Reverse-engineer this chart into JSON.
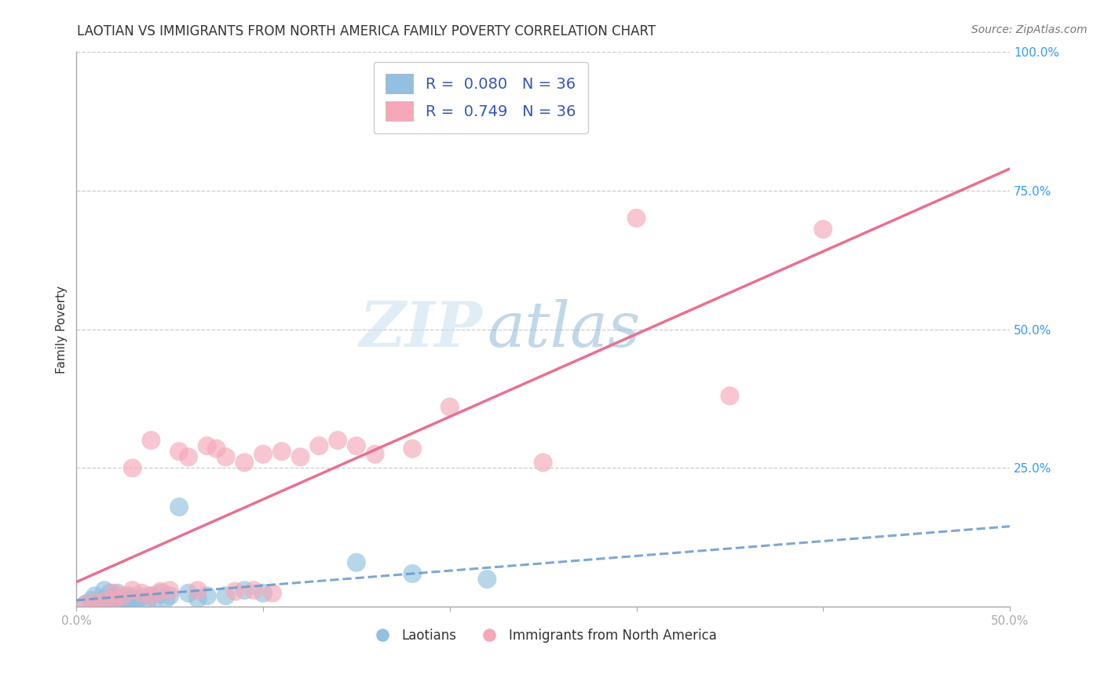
{
  "title": "LAOTIAN VS IMMIGRANTS FROM NORTH AMERICA FAMILY POVERTY CORRELATION CHART",
  "source": "Source: ZipAtlas.com",
  "xlabel": "",
  "ylabel": "Family Poverty",
  "xlim": [
    0.0,
    0.5
  ],
  "ylim": [
    0.0,
    1.0
  ],
  "xticks": [
    0.0,
    0.1,
    0.2,
    0.3,
    0.4,
    0.5
  ],
  "xticklabels": [
    "0.0%",
    "",
    "",
    "",
    "",
    "50.0%"
  ],
  "yticks": [
    0.0,
    0.25,
    0.5,
    0.75,
    1.0
  ],
  "yticklabels": [
    "",
    "25.0%",
    "50.0%",
    "75.0%",
    "100.0%"
  ],
  "R_blue": 0.08,
  "N_blue": 36,
  "R_pink": 0.749,
  "N_pink": 36,
  "blue_color": "#91c0e0",
  "pink_color": "#f4a8b8",
  "blue_line_color": "#6699cc",
  "pink_line_color": "#e87090",
  "label_blue": "Laotians",
  "label_pink": "Immigrants from North America",
  "watermark_zip": "ZIP",
  "watermark_atlas": "atlas",
  "blue_x": [
    0.005,
    0.008,
    0.01,
    0.012,
    0.015,
    0.015,
    0.018,
    0.018,
    0.02,
    0.02,
    0.022,
    0.022,
    0.025,
    0.025,
    0.028,
    0.028,
    0.03,
    0.03,
    0.032,
    0.035,
    0.038,
    0.04,
    0.042,
    0.045,
    0.048,
    0.05,
    0.055,
    0.06,
    0.065,
    0.07,
    0.08,
    0.09,
    0.1,
    0.15,
    0.18,
    0.22
  ],
  "blue_y": [
    0.005,
    0.012,
    0.02,
    0.008,
    0.015,
    0.03,
    0.01,
    0.025,
    0.008,
    0.018,
    0.012,
    0.025,
    0.005,
    0.015,
    0.01,
    0.02,
    0.008,
    0.015,
    0.012,
    0.018,
    0.01,
    0.02,
    0.015,
    0.025,
    0.015,
    0.02,
    0.18,
    0.025,
    0.015,
    0.02,
    0.02,
    0.03,
    0.025,
    0.08,
    0.06,
    0.05
  ],
  "pink_x": [
    0.005,
    0.01,
    0.015,
    0.02,
    0.02,
    0.025,
    0.03,
    0.03,
    0.035,
    0.04,
    0.04,
    0.045,
    0.05,
    0.055,
    0.06,
    0.065,
    0.07,
    0.075,
    0.08,
    0.085,
    0.09,
    0.095,
    0.1,
    0.105,
    0.11,
    0.12,
    0.13,
    0.14,
    0.15,
    0.16,
    0.18,
    0.2,
    0.25,
    0.3,
    0.35,
    0.4
  ],
  "pink_y": [
    0.005,
    0.008,
    0.01,
    0.012,
    0.025,
    0.02,
    0.03,
    0.25,
    0.025,
    0.02,
    0.3,
    0.028,
    0.03,
    0.28,
    0.27,
    0.03,
    0.29,
    0.285,
    0.27,
    0.028,
    0.26,
    0.03,
    0.275,
    0.025,
    0.28,
    0.27,
    0.29,
    0.3,
    0.29,
    0.275,
    0.285,
    0.36,
    0.26,
    0.7,
    0.38,
    0.68
  ],
  "background_color": "#ffffff",
  "grid_color": "#cccccc",
  "title_fontsize": 12,
  "axis_label_fontsize": 11,
  "tick_fontsize": 11,
  "legend_fontsize": 14
}
